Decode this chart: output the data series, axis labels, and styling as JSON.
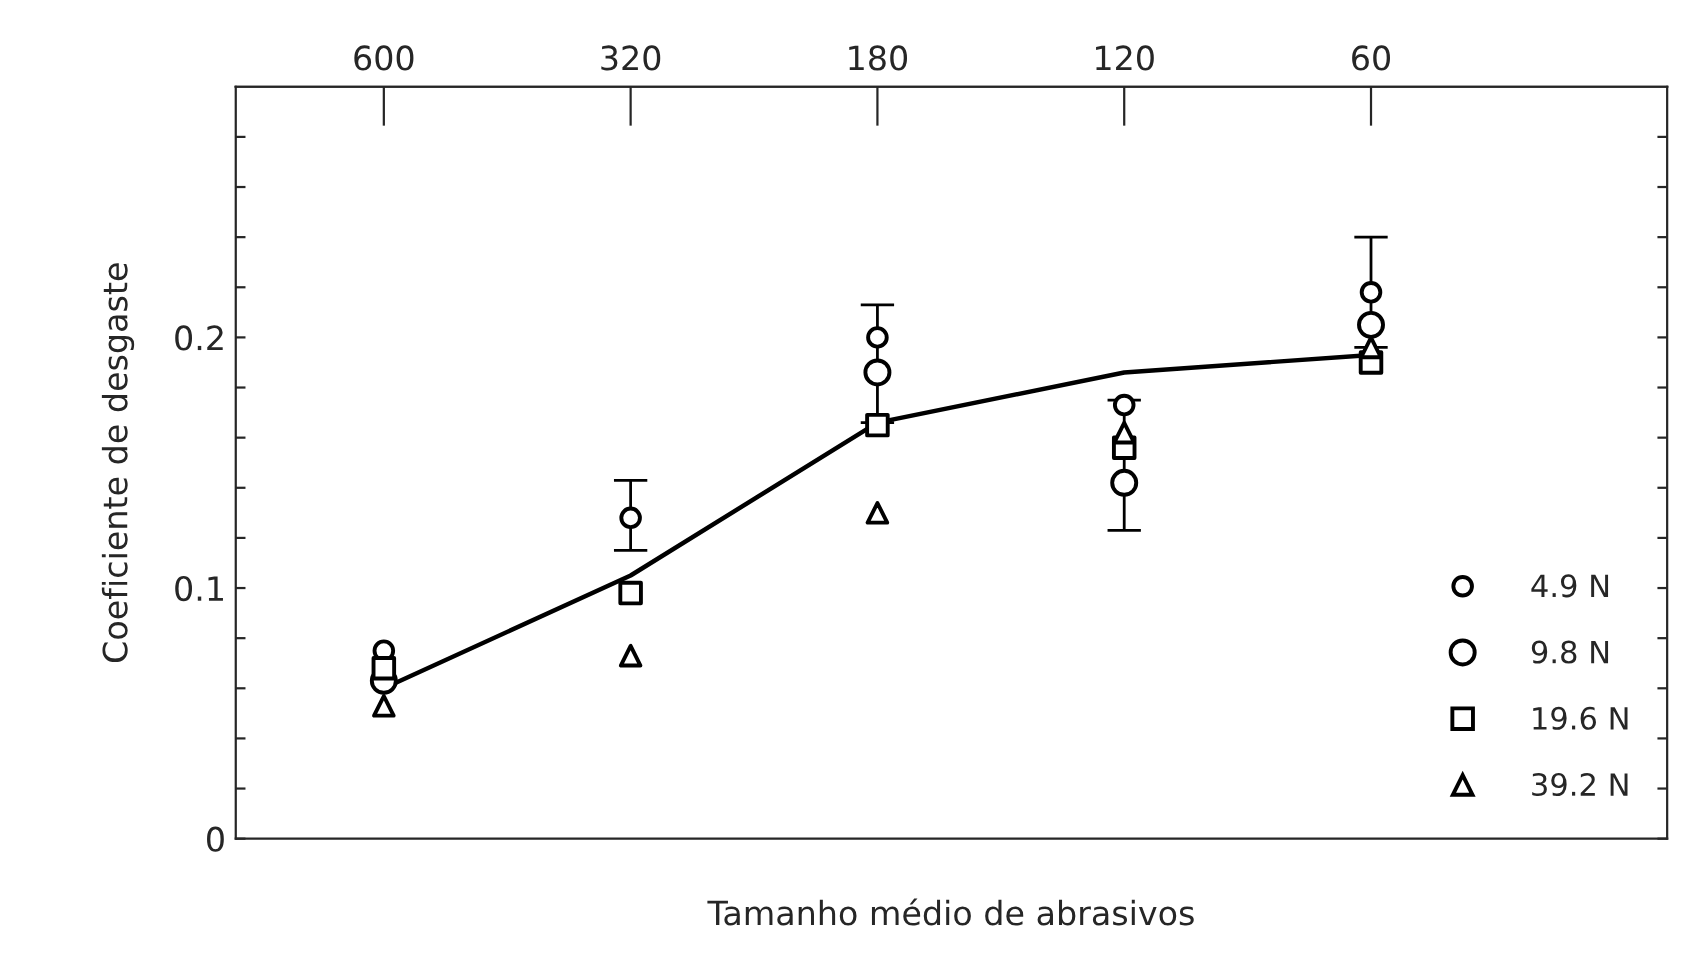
{
  "chart_data": {
    "type": "scatter",
    "xlabel": "Tamanho médio de abrasivos",
    "ylabel": "Coeficiente de desgaste",
    "categories": [
      "600",
      "320",
      "180",
      "120",
      "60"
    ],
    "ylim": [
      0,
      0.3
    ],
    "yticks": [
      0,
      {
        "value": 0.02,
        "label": null
      },
      {
        "value": 0.04,
        "label": null
      },
      {
        "value": 0.06,
        "label": null
      },
      {
        "value": 0.08,
        "label": null
      },
      0.1,
      {
        "value": 0.12,
        "label": null
      },
      {
        "value": 0.14,
        "label": null
      },
      {
        "value": 0.16,
        "label": null
      },
      {
        "value": 0.18,
        "label": null
      },
      0.2,
      {
        "value": 0.22,
        "label": null
      },
      {
        "value": 0.24,
        "label": null
      },
      {
        "value": 0.26,
        "label": null
      },
      {
        "value": 0.28,
        "label": null
      }
    ],
    "grid": false,
    "legend": "bottom right",
    "series": [
      {
        "name": "4.9 N",
        "color": "#000000",
        "marker": "circle",
        "values": [
          0.075,
          0.128,
          0.2,
          0.173,
          0.218
        ],
        "errors": [
          null,
          [
            0.115,
            0.143
          ],
          [
            0.166,
            0.213
          ],
          [
            0.123,
            0.175
          ],
          [
            0.196,
            0.24
          ]
        ]
      },
      {
        "name": "9.8 N",
        "color": "#000000",
        "marker": "circle",
        "values": [
          0.063,
          null,
          0.186,
          0.142,
          0.205
        ]
      },
      {
        "name": "19.6 N",
        "color": "#000000",
        "marker": "square",
        "values": [
          0.068,
          0.098,
          0.165,
          0.156,
          0.19
        ]
      },
      {
        "name": "39.2 N",
        "color": "#000000",
        "marker": "triangle",
        "values": [
          0.053,
          0.073,
          0.13,
          0.162,
          0.196
        ]
      },
      {
        "type": "line",
        "color": "#000000",
        "line_style": "solid",
        "values": [
          0.06,
          0.105,
          0.166,
          0.186,
          0.193
        ]
      }
    ]
  }
}
